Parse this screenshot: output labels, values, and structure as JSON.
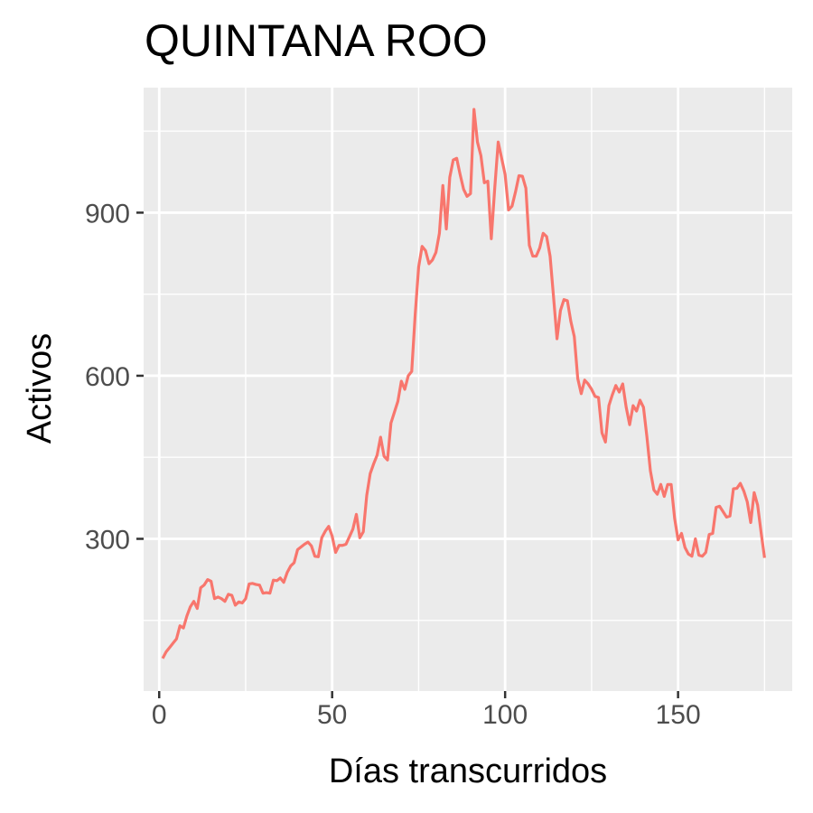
{
  "chart_data": {
    "type": "line",
    "title": "QUINTANA ROO",
    "xlabel": "Días transcurridos",
    "ylabel": "Activos",
    "xlim": [
      -4.5,
      183
    ],
    "ylim": [
      20,
      1130
    ],
    "x_ticks": [
      0,
      50,
      100,
      150
    ],
    "x_tick_labels": [
      "0",
      "50",
      "100",
      "150"
    ],
    "y_ticks": [
      300,
      600,
      900
    ],
    "y_tick_labels": [
      "300",
      "600",
      "900"
    ],
    "x_minor_ticks": [
      25,
      75,
      125,
      175
    ],
    "y_minor_ticks": [
      150,
      450,
      750,
      1050
    ],
    "grid": true,
    "legend": "none",
    "panel_background": "#ebebeb",
    "grid_color": "#ffffff",
    "series": [
      {
        "color": "#f8766d",
        "x": [
          1,
          2,
          3,
          4,
          5,
          6,
          7,
          8,
          9,
          10,
          11,
          12,
          13,
          14,
          15,
          16,
          17,
          18,
          19,
          20,
          21,
          22,
          23,
          24,
          25,
          26,
          27,
          28,
          29,
          30,
          31,
          32,
          33,
          34,
          35,
          36,
          37,
          38,
          39,
          40,
          41,
          42,
          43,
          44,
          45,
          46,
          47,
          48,
          49,
          50,
          51,
          52,
          53,
          54,
          55,
          56,
          57,
          58,
          59,
          60,
          61,
          62,
          63,
          64,
          65,
          66,
          67,
          68,
          69,
          70,
          71,
          72,
          73,
          74,
          75,
          76,
          77,
          78,
          79,
          80,
          81,
          82,
          83,
          84,
          85,
          86,
          87,
          88,
          89,
          90,
          91,
          92,
          93,
          94,
          95,
          96,
          97,
          98,
          99,
          100,
          101,
          102,
          103,
          104,
          105,
          106,
          107,
          108,
          109,
          110,
          111,
          112,
          113,
          114,
          115,
          116,
          117,
          118,
          119,
          120,
          121,
          122,
          123,
          124,
          125,
          126,
          127,
          128,
          129,
          130,
          131,
          132,
          133,
          134,
          135,
          136,
          137,
          138,
          139,
          140,
          141,
          142,
          143,
          144,
          145,
          146,
          147,
          148,
          149,
          150,
          151,
          152,
          153,
          154,
          155,
          156,
          157,
          158,
          159,
          160,
          161,
          162,
          163,
          164,
          165,
          166,
          167,
          168,
          169,
          170,
          171,
          172,
          173,
          174,
          175
        ],
        "y": [
          80,
          92,
          100,
          108,
          116,
          140,
          136,
          158,
          175,
          185,
          172,
          210,
          215,
          225,
          222,
          190,
          193,
          190,
          185,
          198,
          196,
          178,
          184,
          182,
          190,
          217,
          218,
          216,
          215,
          200,
          201,
          200,
          224,
          223,
          228,
          220,
          238,
          250,
          256,
          280,
          285,
          290,
          294,
          287,
          268,
          267,
          302,
          314,
          323,
          305,
          275,
          288,
          288,
          290,
          304,
          318,
          345,
          302,
          313,
          380,
          420,
          438,
          454,
          487,
          452,
          445,
          513,
          533,
          553,
          590,
          575,
          600,
          608,
          712,
          800,
          838,
          830,
          806,
          813,
          827,
          862,
          950,
          870,
          965,
          997,
          1000,
          970,
          943,
          930,
          935,
          1090,
          1030,
          1005,
          955,
          958,
          852,
          945,
          1030,
          1000,
          970,
          905,
          912,
          938,
          968,
          967,
          945,
          840,
          820,
          820,
          835,
          862,
          856,
          820,
          745,
          668,
          720,
          740,
          738,
          700,
          672,
          595,
          567,
          592,
          585,
          575,
          562,
          560,
          495,
          478,
          545,
          565,
          582,
          570,
          585,
          542,
          510,
          545,
          535,
          555,
          542,
          487,
          425,
          390,
          382,
          400,
          378,
          400,
          400,
          338,
          298,
          310,
          284,
          272,
          268,
          300,
          270,
          268,
          275,
          308,
          310,
          358,
          360,
          350,
          340,
          342,
          392,
          393,
          402,
          388,
          368,
          330,
          385,
          362,
          312,
          265
        ]
      }
    ]
  }
}
